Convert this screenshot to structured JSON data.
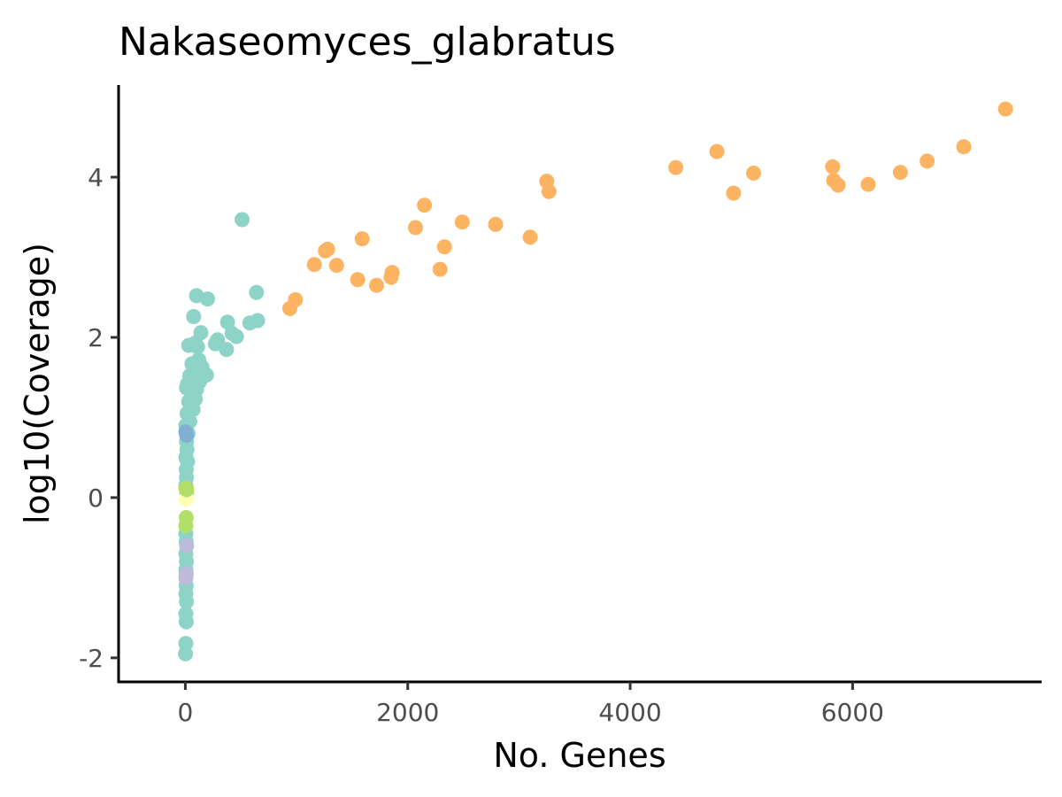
{
  "chart_data": {
    "type": "scatter",
    "title": "Nakaseomyces_glabratus",
    "xlabel": "No. Genes",
    "ylabel": "log10(Coverage)",
    "xlim": [
      -600,
      7700
    ],
    "ylim": [
      -2.3,
      5.15
    ],
    "x_ticks": [
      {
        "value": 0,
        "label": "0"
      },
      {
        "value": 2000,
        "label": "2000"
      },
      {
        "value": 4000,
        "label": "4000"
      },
      {
        "value": 6000,
        "label": "6000"
      }
    ],
    "y_ticks": [
      {
        "value": -2,
        "label": "-2"
      },
      {
        "value": 0,
        "label": "0"
      },
      {
        "value": 2,
        "label": "2"
      },
      {
        "value": 4,
        "label": "4"
      }
    ],
    "grid": false,
    "legend": "none",
    "series": [
      {
        "color": "#FDB462",
        "points": [
          [
            7375,
            4.85
          ],
          [
            7000,
            4.38
          ],
          [
            6670,
            4.2
          ],
          [
            6430,
            4.06
          ],
          [
            6140,
            3.91
          ],
          [
            5870,
            3.9
          ],
          [
            5830,
            3.96
          ],
          [
            5820,
            4.13
          ],
          [
            5110,
            4.05
          ],
          [
            4930,
            3.8
          ],
          [
            4780,
            4.32
          ],
          [
            4410,
            4.12
          ],
          [
            3270,
            3.82
          ],
          [
            3250,
            3.95
          ],
          [
            3100,
            3.25
          ],
          [
            2790,
            3.41
          ],
          [
            2490,
            3.44
          ],
          [
            2330,
            3.13
          ],
          [
            2290,
            2.85
          ],
          [
            2150,
            3.65
          ],
          [
            2070,
            3.37
          ],
          [
            1860,
            2.81
          ],
          [
            1850,
            2.75
          ],
          [
            1720,
            2.65
          ],
          [
            1590,
            3.23
          ],
          [
            1550,
            2.72
          ],
          [
            1360,
            2.9
          ],
          [
            1280,
            3.1
          ],
          [
            1260,
            3.08
          ],
          [
            1160,
            2.91
          ],
          [
            990,
            2.47
          ],
          [
            940,
            2.36
          ]
        ]
      },
      {
        "color": "#8DD3C7",
        "points": [
          [
            510,
            3.47
          ],
          [
            640,
            2.56
          ],
          [
            100,
            2.52
          ],
          [
            200,
            2.48
          ],
          [
            650,
            2.21
          ],
          [
            580,
            2.18
          ],
          [
            380,
            2.19
          ],
          [
            75,
            2.26
          ],
          [
            140,
            2.06
          ],
          [
            420,
            2.05
          ],
          [
            460,
            2.01
          ],
          [
            290,
            1.97
          ],
          [
            270,
            1.92
          ],
          [
            370,
            1.85
          ],
          [
            90,
            1.93
          ],
          [
            30,
            1.9
          ],
          [
            110,
            1.88
          ],
          [
            120,
            1.72
          ],
          [
            60,
            1.67
          ],
          [
            150,
            1.63
          ],
          [
            190,
            1.53
          ],
          [
            40,
            1.52
          ],
          [
            80,
            1.6
          ],
          [
            130,
            1.45
          ],
          [
            100,
            1.35
          ],
          [
            20,
            1.42
          ],
          [
            60,
            1.3
          ],
          [
            10,
            1.37
          ],
          [
            90,
            1.23
          ],
          [
            30,
            1.2
          ],
          [
            70,
            1.1
          ],
          [
            15,
            1.05
          ],
          [
            40,
            0.95
          ],
          [
            5,
            0.9
          ],
          [
            25,
            0.8
          ],
          [
            10,
            0.7
          ],
          [
            15,
            0.6
          ],
          [
            5,
            0.5
          ],
          [
            20,
            0.45
          ],
          [
            8,
            0.35
          ],
          [
            10,
            0.25
          ],
          [
            5,
            0.15
          ],
          [
            12,
            0.05
          ],
          [
            5,
            -0.45
          ],
          [
            8,
            -0.55
          ],
          [
            5,
            -0.7
          ],
          [
            10,
            -0.8
          ],
          [
            5,
            -0.9
          ],
          [
            8,
            -1.1
          ],
          [
            5,
            -1.2
          ],
          [
            10,
            -1.3
          ],
          [
            5,
            -1.45
          ],
          [
            8,
            -1.55
          ],
          [
            5,
            -1.82
          ],
          [
            2,
            -1.95
          ]
        ]
      },
      {
        "color": "#80B1D3",
        "points": [
          [
            5,
            0.82
          ],
          [
            12,
            0.78
          ]
        ]
      },
      {
        "color": "#FFFFB3",
        "points": [
          [
            5,
            -0.02
          ],
          [
            12,
            0.0
          ]
        ]
      },
      {
        "color": "#B3DE69",
        "points": [
          [
            5,
            0.12
          ],
          [
            8,
            -0.25
          ],
          [
            5,
            -0.35
          ],
          [
            12,
            0.1
          ]
        ]
      },
      {
        "color": "#BEBADA",
        "points": [
          [
            5,
            -1.0
          ],
          [
            8,
            -0.95
          ],
          [
            12,
            -0.6
          ]
        ]
      }
    ]
  }
}
